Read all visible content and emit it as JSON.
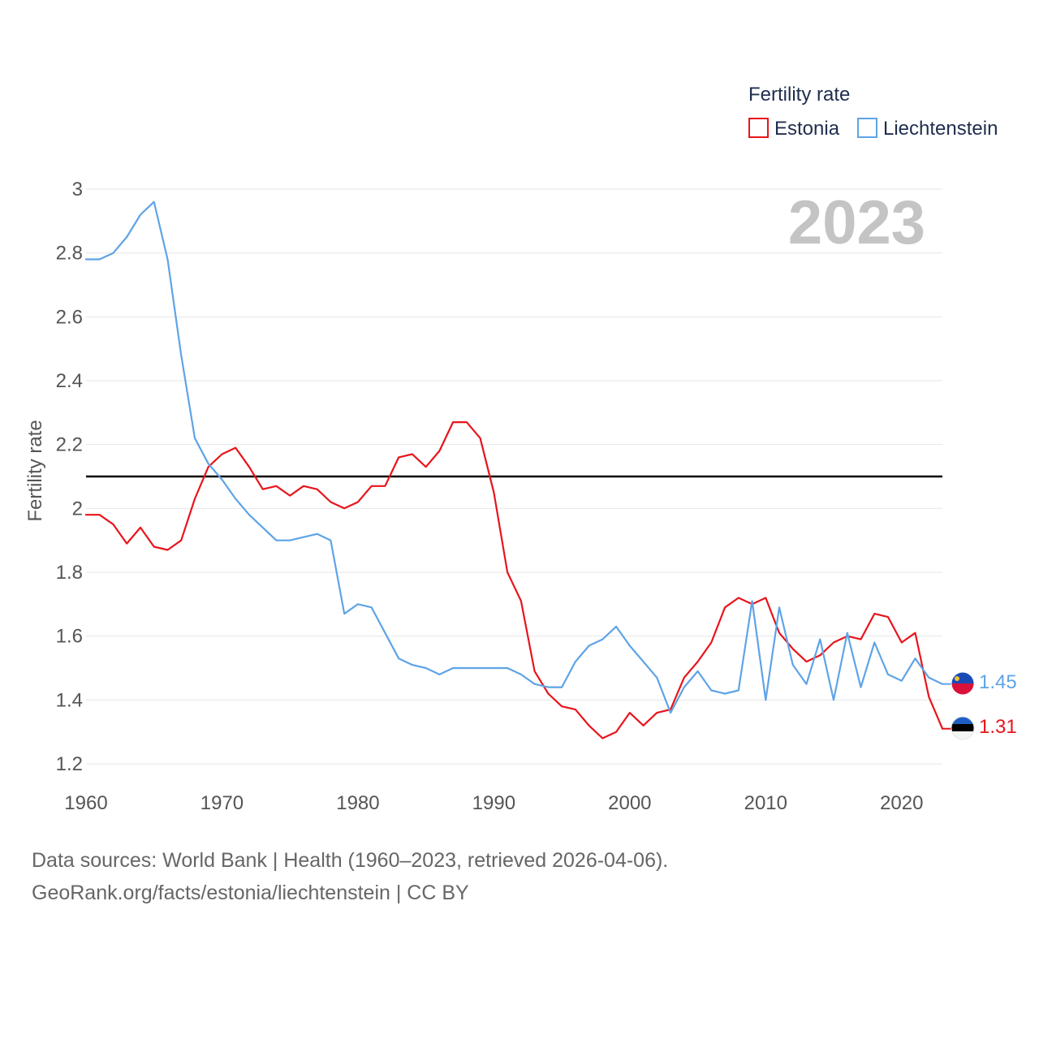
{
  "chart_data": {
    "type": "line",
    "title": "",
    "legend_title": "Fertility rate",
    "legend_position": "top-right",
    "ylabel": "Fertility rate",
    "xlabel": "",
    "xlim": [
      1960,
      2023
    ],
    "ylim": [
      1.2,
      3.0
    ],
    "x_ticks": [
      1960,
      1970,
      1980,
      1990,
      2000,
      2010,
      2020
    ],
    "y_ticks": [
      1.2,
      1.4,
      1.6,
      1.8,
      2.0,
      2.2,
      2.4,
      2.6,
      2.8,
      3.0
    ],
    "y_tick_labels": [
      "1.2",
      "1.4",
      "1.6",
      "1.8",
      "2",
      "2.2",
      "2.4",
      "2.6",
      "2.8",
      "3"
    ],
    "reference_line": {
      "y": 2.1,
      "color": "#000000"
    },
    "year_label": "2023",
    "grid": true,
    "series": [
      {
        "name": "Estonia",
        "color": "#e8141b",
        "end_label": "1.31",
        "flag_icon": "estonia-flag-icon",
        "x": [
          1960,
          1961,
          1962,
          1963,
          1964,
          1965,
          1966,
          1967,
          1968,
          1969,
          1970,
          1971,
          1972,
          1973,
          1974,
          1975,
          1976,
          1977,
          1978,
          1979,
          1980,
          1981,
          1982,
          1983,
          1984,
          1985,
          1986,
          1987,
          1988,
          1989,
          1990,
          1991,
          1992,
          1993,
          1994,
          1995,
          1996,
          1997,
          1998,
          1999,
          2000,
          2001,
          2002,
          2003,
          2004,
          2005,
          2006,
          2007,
          2008,
          2009,
          2010,
          2011,
          2012,
          2013,
          2014,
          2015,
          2016,
          2017,
          2018,
          2019,
          2020,
          2021,
          2022,
          2023
        ],
        "y": [
          1.98,
          1.98,
          1.95,
          1.89,
          1.94,
          1.88,
          1.87,
          1.9,
          2.03,
          2.13,
          2.17,
          2.19,
          2.13,
          2.06,
          2.07,
          2.04,
          2.07,
          2.06,
          2.02,
          2.0,
          2.02,
          2.07,
          2.07,
          2.16,
          2.17,
          2.13,
          2.18,
          2.27,
          2.27,
          2.22,
          2.05,
          1.8,
          1.71,
          1.49,
          1.42,
          1.38,
          1.37,
          1.32,
          1.28,
          1.3,
          1.36,
          1.32,
          1.36,
          1.37,
          1.47,
          1.52,
          1.58,
          1.69,
          1.72,
          1.7,
          1.72,
          1.61,
          1.56,
          1.52,
          1.54,
          1.58,
          1.6,
          1.59,
          1.67,
          1.66,
          1.58,
          1.61,
          1.41,
          1.31
        ]
      },
      {
        "name": "Liechtenstein",
        "color": "#5ea4e6",
        "end_label": "1.45",
        "flag_icon": "liechtenstein-flag-icon",
        "x": [
          1960,
          1961,
          1962,
          1963,
          1964,
          1965,
          1966,
          1967,
          1968,
          1969,
          1970,
          1971,
          1972,
          1973,
          1974,
          1975,
          1976,
          1977,
          1978,
          1979,
          1980,
          1981,
          1982,
          1983,
          1984,
          1985,
          1986,
          1987,
          1988,
          1989,
          1990,
          1991,
          1992,
          1993,
          1994,
          1995,
          1996,
          1997,
          1998,
          1999,
          2000,
          2001,
          2002,
          2003,
          2004,
          2005,
          2006,
          2007,
          2008,
          2009,
          2010,
          2011,
          2012,
          2013,
          2014,
          2015,
          2016,
          2017,
          2018,
          2019,
          2020,
          2021,
          2022,
          2023
        ],
        "y": [
          2.78,
          2.78,
          2.8,
          2.85,
          2.92,
          2.96,
          2.78,
          2.48,
          2.22,
          2.14,
          2.09,
          2.03,
          1.98,
          1.94,
          1.9,
          1.9,
          1.91,
          1.92,
          1.9,
          1.67,
          1.7,
          1.69,
          1.61,
          1.53,
          1.51,
          1.5,
          1.48,
          1.5,
          1.5,
          1.5,
          1.5,
          1.5,
          1.48,
          1.45,
          1.44,
          1.44,
          1.52,
          1.57,
          1.59,
          1.63,
          1.57,
          1.52,
          1.47,
          1.36,
          1.44,
          1.49,
          1.43,
          1.42,
          1.43,
          1.71,
          1.4,
          1.69,
          1.51,
          1.45,
          1.59,
          1.4,
          1.61,
          1.44,
          1.58,
          1.48,
          1.46,
          1.53,
          1.47,
          1.45
        ]
      }
    ]
  },
  "footer": {
    "source_line": "Data sources: World Bank | Health (1960–2023, retrieved 2026-04-06).",
    "url_line": "GeoRank.org/facts/estonia/liechtenstein | CC BY"
  }
}
